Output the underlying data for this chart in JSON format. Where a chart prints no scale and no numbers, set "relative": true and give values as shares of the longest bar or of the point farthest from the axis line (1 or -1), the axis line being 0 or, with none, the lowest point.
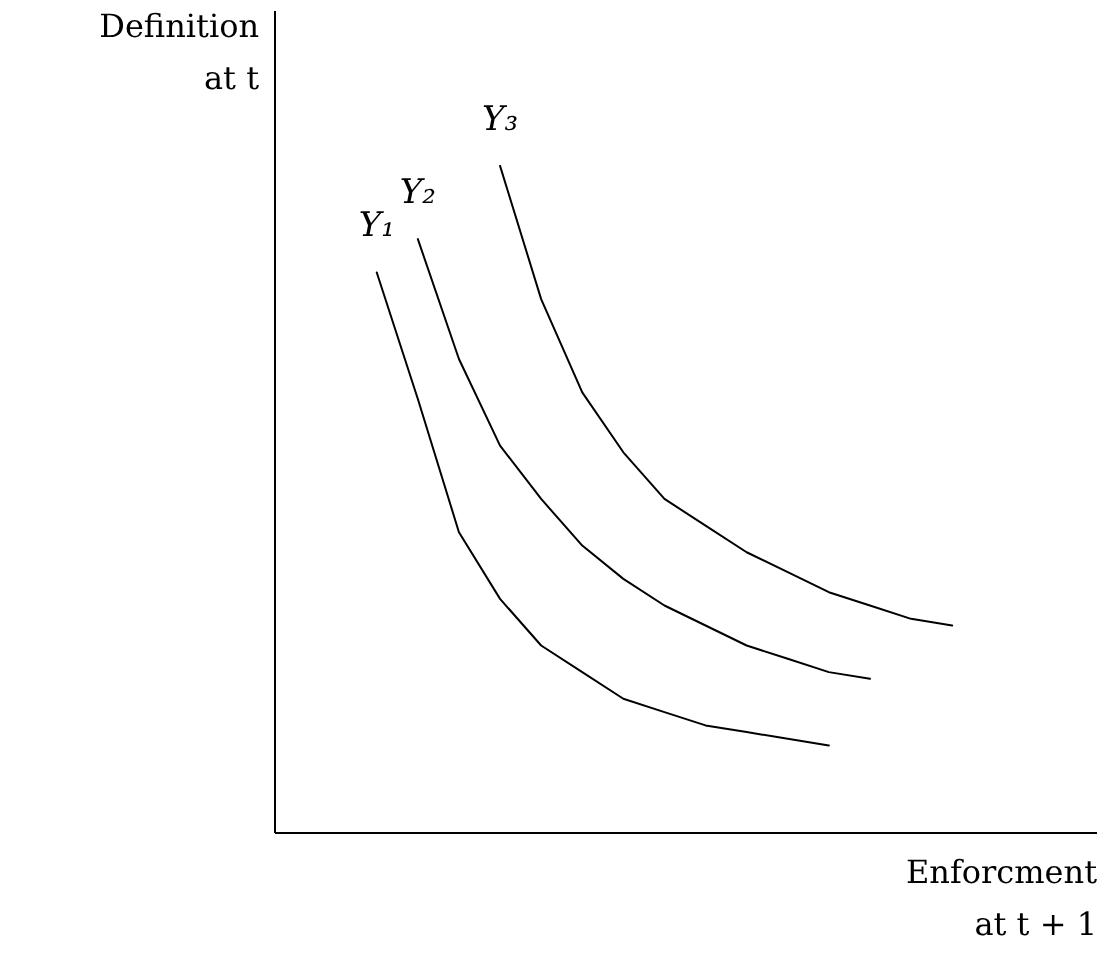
{
  "chart_data": {
    "type": "line",
    "relative": true,
    "xlabel": "Enforcment\nat t + 1",
    "ylabel": "Definition\nat t",
    "categories": [
      null,
      null,
      null,
      null,
      null,
      null,
      null,
      null,
      null,
      null,
      null,
      null,
      null,
      null,
      null,
      null,
      null,
      null,
      null,
      null
    ],
    "series": [
      {
        "name": "Y₁",
        "color": "#000000",
        "values": [
          null,
          null,
          0.84,
          0.65,
          0.45,
          0.35,
          0.28,
          0.24,
          0.2,
          0.18,
          0.16,
          0.15,
          0.14,
          0.13,
          null,
          null,
          null,
          null,
          null,
          null
        ]
      },
      {
        "name": "Y₂",
        "color": "#000000",
        "values": [
          null,
          null,
          null,
          0.89,
          0.71,
          0.58,
          0.5,
          0.43,
          0.38,
          0.34,
          0.31,
          0.28,
          0.26,
          0.24,
          0.23,
          null,
          null,
          null,
          null,
          null
        ]
      },
      {
        "name": "Y₃",
        "color": "#000000",
        "values": [
          null,
          null,
          null,
          null,
          null,
          1,
          0.8,
          0.66,
          0.57,
          0.5,
          0.46,
          0.42,
          0.39,
          0.36,
          0.34,
          0.32,
          0.31,
          null,
          null,
          null
        ]
      }
    ],
    "line_style": "solid",
    "marker": "none"
  }
}
